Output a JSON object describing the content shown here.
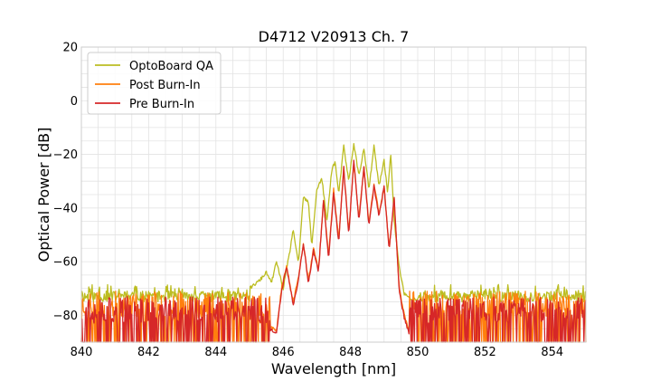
{
  "chart_data": {
    "type": "line",
    "title": "D4712 V20913 Ch. 7",
    "xlabel": "Wavelength [nm]",
    "ylabel": "Optical Power [dB]",
    "xlim": [
      840,
      855
    ],
    "ylim": [
      -90,
      20
    ],
    "xticks": [
      840,
      842,
      844,
      846,
      848,
      850,
      852,
      854
    ],
    "yticks": [
      20,
      0,
      -20,
      -40,
      -60,
      -80
    ],
    "grid": true,
    "legend_position": "top-left",
    "series": [
      {
        "name": "OptoBoard QA",
        "color": "#bcbd22",
        "noise_floor": -73,
        "x": [
          845.0,
          845.3,
          845.5,
          845.65,
          845.8,
          846.0,
          846.2,
          846.3,
          846.45,
          846.6,
          846.75,
          846.85,
          847.0,
          847.15,
          847.3,
          847.45,
          847.55,
          847.65,
          847.8,
          847.95,
          848.1,
          848.25,
          848.4,
          848.55,
          848.7,
          848.85,
          849.0,
          849.1,
          849.2,
          849.3,
          849.45,
          849.6,
          849.8,
          850.0
        ],
        "y": [
          -70,
          -67,
          -64,
          -68,
          -60,
          -70,
          -56,
          -48,
          -61,
          -36,
          -38,
          -54,
          -33,
          -29,
          -45,
          -25,
          -23,
          -35,
          -17,
          -30,
          -16,
          -28,
          -18,
          -33,
          -17,
          -32,
          -22,
          -34,
          -20,
          -45,
          -62,
          -72,
          -74,
          -74
        ]
      },
      {
        "name": "Post Burn-In",
        "color": "#ff7f0e",
        "noise_floor": -78,
        "x": [
          845.6,
          845.8,
          845.95,
          846.1,
          846.3,
          846.45,
          846.6,
          846.75,
          846.9,
          847.05,
          847.2,
          847.35,
          847.5,
          847.65,
          847.8,
          847.95,
          848.1,
          848.25,
          848.4,
          848.55,
          848.7,
          848.85,
          849.0,
          849.15,
          849.3,
          849.45,
          849.6,
          849.75
        ],
        "y": [
          -84,
          -86,
          -70,
          -62,
          -75,
          -66,
          -53,
          -67,
          -55,
          -63,
          -37,
          -58,
          -33,
          -52,
          -25,
          -49,
          -23,
          -44,
          -25,
          -46,
          -31,
          -42,
          -32,
          -55,
          -37,
          -70,
          -80,
          -86
        ]
      },
      {
        "name": "Pre Burn-In",
        "color": "#d62728",
        "noise_floor": -80,
        "x": [
          845.6,
          845.8,
          845.95,
          846.1,
          846.3,
          846.45,
          846.6,
          846.75,
          846.9,
          847.05,
          847.2,
          847.35,
          847.5,
          847.65,
          847.8,
          847.95,
          848.1,
          848.25,
          848.4,
          848.55,
          848.7,
          848.85,
          849.0,
          849.15,
          849.3,
          849.45,
          849.6,
          849.75
        ],
        "y": [
          -85,
          -87,
          -71,
          -62,
          -76,
          -67,
          -53,
          -68,
          -56,
          -64,
          -37,
          -59,
          -34,
          -53,
          -25,
          -50,
          -22,
          -45,
          -25,
          -47,
          -32,
          -43,
          -32,
          -56,
          -36,
          -71,
          -81,
          -87
        ]
      }
    ]
  }
}
